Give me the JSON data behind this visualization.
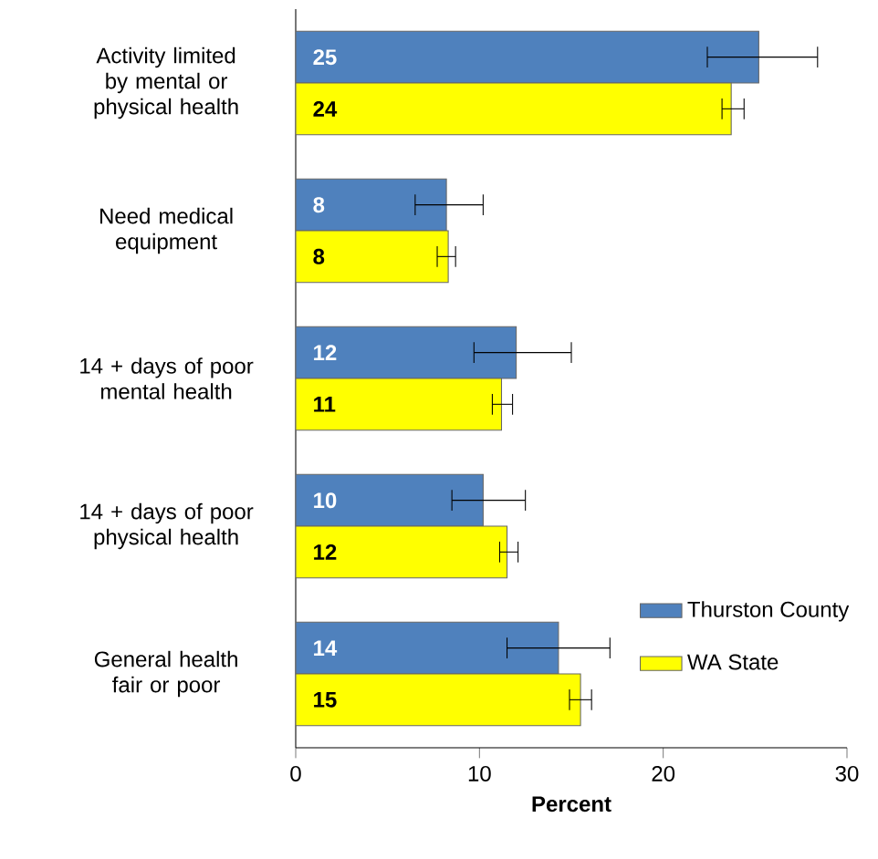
{
  "chart_data": {
    "type": "bar",
    "orientation": "horizontal",
    "categories": [
      "Activity limited by mental or physical health",
      "Need medical equipment",
      "14 + days of poor mental health",
      "14 + days of poor physical health",
      "General health fair or poor"
    ],
    "series": [
      {
        "name": "Thurston County",
        "color": "#4f81bd",
        "values": [
          25.2,
          8.2,
          12.0,
          10.2,
          14.3
        ],
        "value_labels": [
          "25",
          "8",
          "12",
          "10",
          "14"
        ],
        "errors": [
          [
            22.4,
            28.4
          ],
          [
            6.5,
            10.2
          ],
          [
            9.7,
            15.0
          ],
          [
            8.5,
            12.5
          ],
          [
            11.5,
            17.1
          ]
        ]
      },
      {
        "name": "WA State",
        "color": "#ffff00",
        "values": [
          23.7,
          8.3,
          11.2,
          11.5,
          15.5
        ],
        "value_labels": [
          "24",
          "8",
          "11",
          "12",
          "15"
        ],
        "errors": [
          [
            23.2,
            24.4
          ],
          [
            7.7,
            8.7
          ],
          [
            10.7,
            11.8
          ],
          [
            11.1,
            12.1
          ],
          [
            14.9,
            16.1
          ]
        ]
      }
    ],
    "xlim": [
      0,
      30
    ],
    "xticks": [
      0,
      10,
      20,
      30
    ],
    "xlabel": "Percent",
    "legend": "right"
  }
}
